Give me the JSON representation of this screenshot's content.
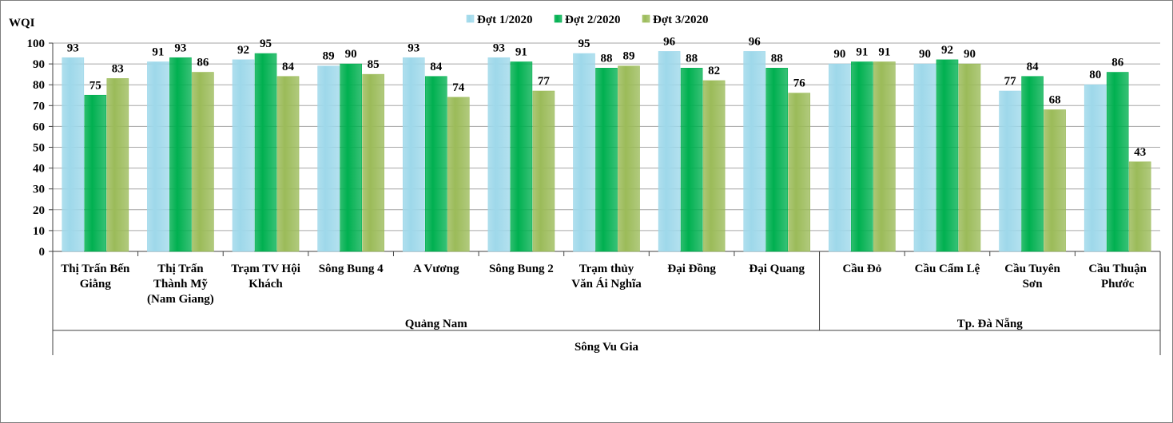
{
  "chart_data": {
    "type": "bar",
    "ylabel": "WQI",
    "ylim": [
      0,
      100
    ],
    "ytick_step": 10,
    "grid": true,
    "legend_position": "top-center",
    "categories": [
      "Thị Trấn Bến Giằng",
      "Thị Trấn Thành Mỹ (Nam Giang)",
      "Trạm TV Hội Khách",
      "Sông Bung 4",
      "A Vương",
      "Sông Bung 2",
      "Trạm thủy Văn Ái Nghĩa",
      "Đại Đồng",
      "Đại Quang",
      "Cầu Đỏ",
      "Cầu Cẩm Lệ",
      "Cầu Tuyên Sơn",
      "Cầu Thuận Phước"
    ],
    "category_lines": [
      [
        "Thị Trấn Bến",
        "Giằng"
      ],
      [
        "Thị Trấn",
        "Thành Mỹ",
        "(Nam Giang)"
      ],
      [
        "Trạm TV Hội",
        "Khách"
      ],
      [
        "Sông Bung 4"
      ],
      [
        "A Vương"
      ],
      [
        "Sông Bung 2"
      ],
      [
        "Trạm thủy",
        "Văn Ái Nghĩa"
      ],
      [
        "Đại Đồng"
      ],
      [
        "Đại Quang"
      ],
      [
        "Cầu Đỏ"
      ],
      [
        "Cầu Cẩm Lệ"
      ],
      [
        "Cầu Tuyên",
        "Sơn"
      ],
      [
        "Cầu Thuận",
        "Phước"
      ]
    ],
    "series": [
      {
        "name": "Đợt 1/2020",
        "color": "#9ed8ea",
        "values": [
          93,
          91,
          92,
          89,
          93,
          93,
          95,
          96,
          96,
          90,
          90,
          77,
          80
        ]
      },
      {
        "name": "Đợt 2/2020",
        "color": "#00b050",
        "values": [
          75,
          93,
          95,
          90,
          84,
          91,
          88,
          88,
          88,
          91,
          92,
          84,
          86
        ]
      },
      {
        "name": "Đợt 3/2020",
        "color": "#9bbb59",
        "values": [
          83,
          86,
          84,
          85,
          74,
          77,
          89,
          82,
          76,
          91,
          90,
          68,
          43
        ]
      }
    ],
    "groups": [
      {
        "label": "Quảng Nam",
        "start": 0,
        "end": 8
      },
      {
        "label": "Tp. Đà Nẵng",
        "start": 9,
        "end": 12
      }
    ],
    "super_group": {
      "label": "Sông Vu Gia",
      "start": 0,
      "end": 12
    }
  }
}
